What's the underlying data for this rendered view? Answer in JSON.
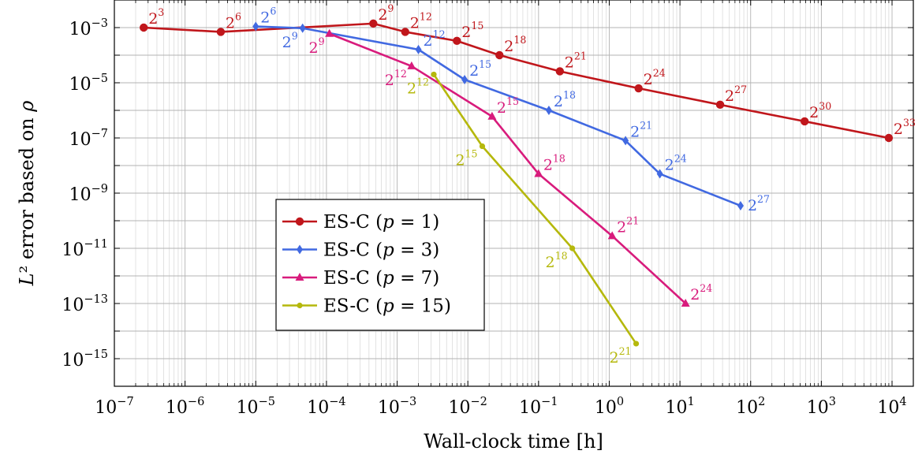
{
  "chart_data": {
    "type": "line",
    "title": "",
    "xlabel": "Wall-clock time [h]",
    "ylabel": "L² error based on ρ",
    "x_scale": "log",
    "y_scale": "log",
    "xlim": [
      1e-07,
      20000
    ],
    "ylim": [
      1e-16,
      0.01
    ],
    "grid": true,
    "legend_position": "center-left",
    "x_tick_labels": [
      {
        "base": "10",
        "exp": "−7",
        "value": 1e-07
      },
      {
        "base": "10",
        "exp": "−6",
        "value": 1e-06
      },
      {
        "base": "10",
        "exp": "−5",
        "value": 1e-05
      },
      {
        "base": "10",
        "exp": "−4",
        "value": 0.0001
      },
      {
        "base": "10",
        "exp": "−3",
        "value": 0.001
      },
      {
        "base": "10",
        "exp": "−2",
        "value": 0.01
      },
      {
        "base": "10",
        "exp": "−1",
        "value": 0.1
      },
      {
        "base": "10",
        "exp": "0",
        "value": 1
      },
      {
        "base": "10",
        "exp": "1",
        "value": 10
      },
      {
        "base": "10",
        "exp": "2",
        "value": 100
      },
      {
        "base": "10",
        "exp": "3",
        "value": 1000
      },
      {
        "base": "10",
        "exp": "4",
        "value": 10000
      }
    ],
    "y_tick_labels": [
      {
        "base": "10",
        "exp": "−3",
        "value": 0.001
      },
      {
        "base": "10",
        "exp": "−5",
        "value": 1e-05
      },
      {
        "base": "10",
        "exp": "−7",
        "value": 1e-07
      },
      {
        "base": "10",
        "exp": "−9",
        "value": 1e-09
      },
      {
        "base": "10",
        "exp": "−11",
        "value": 1e-11
      },
      {
        "base": "10",
        "exp": "−13",
        "value": 1e-13
      },
      {
        "base": "10",
        "exp": "−15",
        "value": 1e-15
      }
    ],
    "series": [
      {
        "name": "ES-C (p = 1)",
        "legend_main": "ES-C (",
        "legend_var": "p",
        "legend_rest": " = 1)",
        "color": "#c0161b",
        "marker": "circle",
        "points": [
          {
            "x": 2.6e-07,
            "y": 0.001,
            "label_base": "2",
            "label_exp": "3",
            "label_pos": "above-right"
          },
          {
            "x": 3.2e-06,
            "y": 0.0007,
            "label_base": "2",
            "label_exp": "6",
            "label_pos": "above-right"
          },
          {
            "x": 0.00046,
            "y": 0.0014,
            "label_base": "2",
            "label_exp": "9",
            "label_pos": "above-right"
          },
          {
            "x": 0.0013,
            "y": 0.0007,
            "label_base": "2",
            "label_exp": "12",
            "label_pos": "above-right"
          },
          {
            "x": 0.007,
            "y": 0.00033,
            "label_base": "2",
            "label_exp": "15",
            "label_pos": "above-right"
          },
          {
            "x": 0.028,
            "y": 0.0001,
            "label_base": "2",
            "label_exp": "18",
            "label_pos": "above-right"
          },
          {
            "x": 0.2,
            "y": 2.6e-05,
            "label_base": "2",
            "label_exp": "21",
            "label_pos": "above-right"
          },
          {
            "x": 2.6,
            "y": 6.3e-06,
            "label_base": "2",
            "label_exp": "24",
            "label_pos": "above-right"
          },
          {
            "x": 37,
            "y": 1.6e-06,
            "label_base": "2",
            "label_exp": "27",
            "label_pos": "above-right"
          },
          {
            "x": 580,
            "y": 4e-07,
            "label_base": "2",
            "label_exp": "30",
            "label_pos": "above-right"
          },
          {
            "x": 9000,
            "y": 1e-07,
            "label_base": "2",
            "label_exp": "33",
            "label_pos": "above-right"
          }
        ]
      },
      {
        "name": "ES-C (p = 3)",
        "legend_main": "ES-C (",
        "legend_var": "p",
        "legend_rest": " = 3)",
        "color": "#4169e1",
        "marker": "diamond",
        "points": [
          {
            "x": 1e-05,
            "y": 0.0011,
            "label_base": "2",
            "label_exp": "6",
            "label_pos": "above-right"
          },
          {
            "x": 4.6e-05,
            "y": 0.00095,
            "label_base": "2",
            "label_exp": "9",
            "label_pos": "below-left"
          },
          {
            "x": 0.002,
            "y": 0.00016,
            "label_base": "2",
            "label_exp": "12",
            "label_pos": "above-right"
          },
          {
            "x": 0.009,
            "y": 1.3e-05,
            "label_base": "2",
            "label_exp": "15",
            "label_pos": "above-right"
          },
          {
            "x": 0.14,
            "y": 1e-06,
            "label_base": "2",
            "label_exp": "18",
            "label_pos": "above-right"
          },
          {
            "x": 1.7,
            "y": 8e-08,
            "label_base": "2",
            "label_exp": "21",
            "label_pos": "above-right"
          },
          {
            "x": 5.2,
            "y": 5e-09,
            "label_base": "2",
            "label_exp": "24",
            "label_pos": "above-right"
          },
          {
            "x": 72,
            "y": 3.5e-10,
            "label_base": "2",
            "label_exp": "27",
            "label_pos": "right"
          }
        ]
      },
      {
        "name": "ES-C (p = 7)",
        "legend_main": "ES-C (",
        "legend_var": "p",
        "legend_rest": " = 7)",
        "color": "#d81b7c",
        "marker": "triangle",
        "points": [
          {
            "x": 0.00011,
            "y": 0.0006,
            "label_base": "2",
            "label_exp": "9",
            "label_pos": "below-left"
          },
          {
            "x": 0.0016,
            "y": 4e-05,
            "label_base": "2",
            "label_exp": "12",
            "label_pos": "below-left"
          },
          {
            "x": 0.022,
            "y": 6e-07,
            "label_base": "2",
            "label_exp": "15",
            "label_pos": "above-right"
          },
          {
            "x": 0.1,
            "y": 5e-09,
            "label_base": "2",
            "label_exp": "18",
            "label_pos": "above-right"
          },
          {
            "x": 1.1,
            "y": 2.8e-11,
            "label_base": "2",
            "label_exp": "21",
            "label_pos": "above-right"
          },
          {
            "x": 12,
            "y": 1e-13,
            "label_base": "2",
            "label_exp": "24",
            "label_pos": "above-right"
          }
        ]
      },
      {
        "name": "ES-C (p = 15)",
        "legend_main": "ES-C (",
        "legend_var": "p",
        "legend_rest": " = 15)",
        "color": "#b5b80c",
        "marker": "dot",
        "points": [
          {
            "x": 0.0033,
            "y": 2e-05,
            "label_base": "2",
            "label_exp": "12",
            "label_pos": "below-left"
          },
          {
            "x": 0.016,
            "y": 5e-08,
            "label_base": "2",
            "label_exp": "15",
            "label_pos": "below-left"
          },
          {
            "x": 0.3,
            "y": 1e-11,
            "label_base": "2",
            "label_exp": "18",
            "label_pos": "below-left"
          },
          {
            "x": 2.4,
            "y": 3.5e-15,
            "label_base": "2",
            "label_exp": "21",
            "label_pos": "below-left"
          }
        ]
      }
    ]
  }
}
